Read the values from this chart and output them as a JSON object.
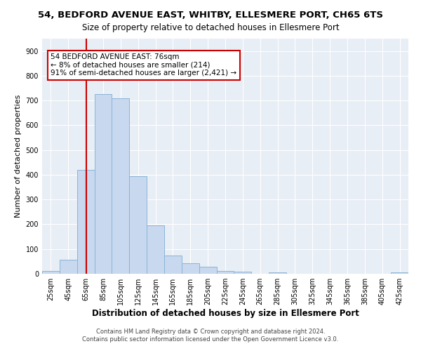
{
  "title": "54, BEDFORD AVENUE EAST, WHITBY, ELLESMERE PORT, CH65 6TS",
  "subtitle": "Size of property relative to detached houses in Ellesmere Port",
  "xlabel": "Distribution of detached houses by size in Ellesmere Port",
  "ylabel": "Number of detached properties",
  "bar_color": "#c8d8ee",
  "bar_edge_color": "#8ab4d8",
  "plot_bg_color": "#e8eef5",
  "fig_bg_color": "#ffffff",
  "grid_color": "#ffffff",
  "vline_x": 76,
  "vline_color": "#cc0000",
  "annotation_line1": "54 BEDFORD AVENUE EAST: 76sqm",
  "annotation_line2": "← 8% of detached houses are smaller (214)",
  "annotation_line3": "91% of semi-detached houses are larger (2,421) →",
  "annotation_box_color": "white",
  "annotation_box_edge": "#cc0000",
  "bins_left": [
    25,
    45,
    65,
    85,
    105,
    125,
    145,
    165,
    185,
    205,
    225,
    245,
    265,
    285,
    305,
    325,
    345,
    365,
    385,
    405,
    425
  ],
  "counts": [
    10,
    58,
    420,
    725,
    710,
    395,
    195,
    75,
    42,
    28,
    10,
    8,
    0,
    5,
    0,
    0,
    0,
    0,
    0,
    0,
    5
  ],
  "bin_width": 20,
  "ylim": [
    0,
    950
  ],
  "yticks": [
    0,
    100,
    200,
    300,
    400,
    500,
    600,
    700,
    800,
    900
  ],
  "footnote1": "Contains HM Land Registry data © Crown copyright and database right 2024.",
  "footnote2": "Contains public sector information licensed under the Open Government Licence v3.0.",
  "title_fontsize": 9.5,
  "subtitle_fontsize": 8.5,
  "xlabel_fontsize": 8.5,
  "ylabel_fontsize": 8,
  "tick_fontsize": 7,
  "annotation_fontsize": 7.5,
  "footnote_fontsize": 6
}
